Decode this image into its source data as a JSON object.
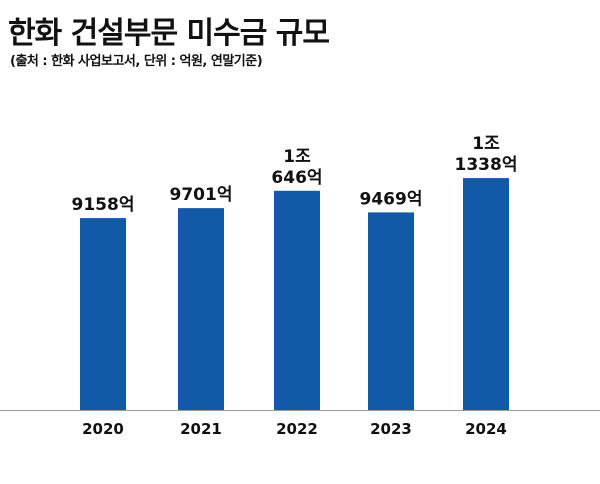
{
  "chart_data": {
    "type": "bar",
    "title": "한화 건설부문 미수금 규모",
    "subtitle": "(출처 : 한화 사업보고서, 단위 : 억원, 연말기준)",
    "categories": [
      "2020",
      "2021",
      "2022",
      "2023",
      "2024"
    ],
    "values": [
      9158,
      9701,
      10646,
      9469,
      11338
    ],
    "data_labels": [
      [
        "9158억"
      ],
      [
        "9701억"
      ],
      [
        "1조",
        "646억"
      ],
      [
        "9469억"
      ],
      [
        "1조",
        "1338억"
      ]
    ],
    "xlabel": "",
    "ylabel": "",
    "unit": "억원",
    "grid": false,
    "legend": "none",
    "colors": {
      "bar": "#1259a7",
      "baseline": "#9a9a9a"
    }
  }
}
